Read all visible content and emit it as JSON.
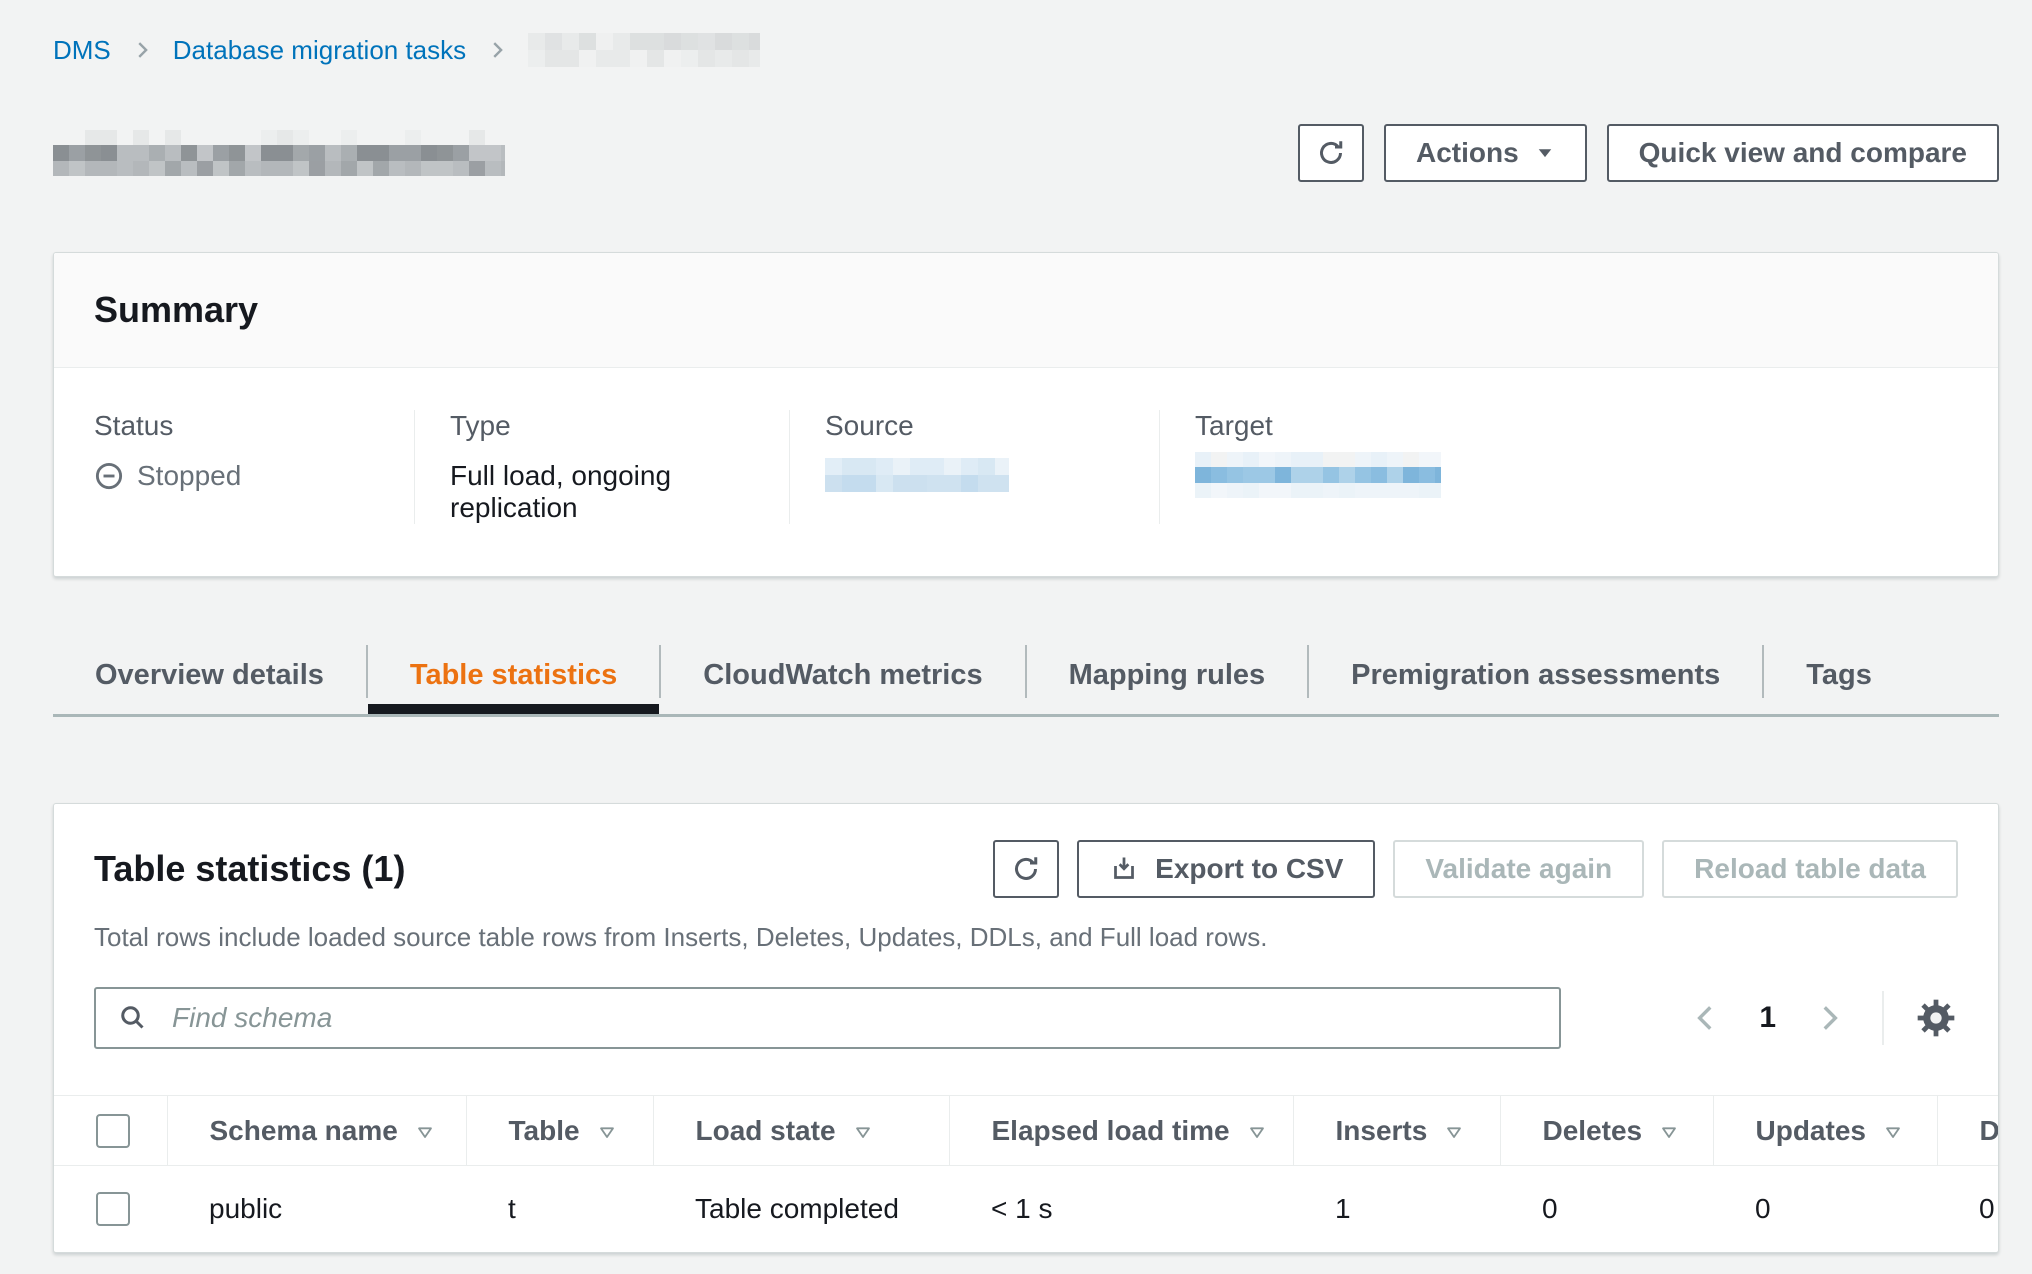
{
  "breadcrumb": {
    "items": [
      "DMS",
      "Database migration tasks"
    ],
    "current_redacted": true
  },
  "header": {
    "actions_label": "Actions",
    "quick_view_label": "Quick view and compare"
  },
  "summary": {
    "title": "Summary",
    "fields": [
      {
        "label": "Status",
        "value": "Stopped",
        "icon": "stopped-icon"
      },
      {
        "label": "Type",
        "value": "Full load, ongoing replication"
      },
      {
        "label": "Source",
        "value_redacted": true
      },
      {
        "label": "Target",
        "value_redacted": true
      }
    ]
  },
  "tabs": [
    {
      "label": "Overview details",
      "active": false
    },
    {
      "label": "Table statistics",
      "active": true
    },
    {
      "label": "CloudWatch metrics",
      "active": false
    },
    {
      "label": "Mapping rules",
      "active": false
    },
    {
      "label": "Premigration assessments",
      "active": false
    },
    {
      "label": "Tags",
      "active": false
    }
  ],
  "table_panel": {
    "title": "Table statistics (1)",
    "buttons": {
      "export_label": "Export to CSV",
      "validate_label": "Validate again",
      "reload_label": "Reload table data",
      "validate_disabled": true,
      "reload_disabled": true
    },
    "description": "Total rows include loaded source table rows from Inserts, Deletes, Updates, DDLs, and Full load rows.",
    "search_placeholder": "Find schema",
    "pagination": {
      "current_page": "1"
    },
    "table": {
      "columns": [
        {
          "label": "Schema name",
          "sortable": true
        },
        {
          "label": "Table",
          "sortable": true
        },
        {
          "label": "Load state",
          "sortable": true
        },
        {
          "label": "Elapsed load time",
          "sortable": true
        },
        {
          "label": "Inserts",
          "sortable": true
        },
        {
          "label": "Deletes",
          "sortable": true
        },
        {
          "label": "Updates",
          "sortable": true
        },
        {
          "label": "D",
          "sortable": false
        }
      ],
      "rows": [
        [
          "public",
          "t",
          "Table completed",
          "< 1 s",
          "1",
          "0",
          "0",
          "0"
        ]
      ]
    }
  },
  "icons": {
    "refresh": "circular arrow ⟳",
    "caret-down": "▼",
    "export": "download-into-tray ⤓",
    "search": "magnifier",
    "settings": "gear ⚙",
    "stopped": "circled minus ⊖",
    "sort": "outlined triangle ▽",
    "chevron": "›"
  },
  "colors": {
    "page_bg": "#f2f3f3",
    "card_bg": "#ffffff",
    "card_border": "#d5dbdb",
    "divider": "#eaeded",
    "text_primary": "#16191f",
    "text_secondary": "#545b64",
    "text_muted": "#687078",
    "link_blue": "#0073bb",
    "tab_active_orange": "#ec7211",
    "tab_underline": "#16191f",
    "disabled_text": "#aab7b8",
    "input_border": "#879596",
    "redactions": {
      "breadcrumb": [
        [
          "#d9dbdc",
          "#e0e2e3",
          "#e8eaea",
          "#eff0f0",
          "#dde0e0"
        ],
        [
          "#e4e6e6",
          "#eceeee",
          "#f0f1f1",
          "#e8eaea"
        ]
      ],
      "title": [
        [
          "#f2f3f3",
          "#eceeee",
          "#f2f3f3",
          "#f2f3f3",
          "#e6e8e8",
          "#f2f3f3"
        ],
        [
          "#8f9497",
          "#9ba0a4",
          "#aaafb2",
          "#b9bdc0",
          "#8a8f93",
          "#c2c5c8",
          "#a3a8ab"
        ],
        [
          "#a2a7aa",
          "#b3b7ba",
          "#c0c4c6",
          "#9b9fa3",
          "#b9bdc0"
        ]
      ],
      "source": [
        [
          "#e2eef7",
          "#d8e8f3",
          "#eaf2f8",
          "#dfecf6"
        ],
        [
          "#cfe2f0",
          "#c4dcee",
          "#d8e8f3",
          "#cce0ef"
        ]
      ],
      "target": [
        [
          "#eef4f9",
          "#f2f6fa",
          "#e8f1f8",
          "#f2f3f3"
        ],
        [
          "#8abde0",
          "#9cc8e5",
          "#aed2e9",
          "#7eb5db",
          "#95c4e3"
        ],
        [
          "#eef4f9",
          "#f2f6fa",
          "#ebf3f8"
        ]
      ]
    }
  }
}
